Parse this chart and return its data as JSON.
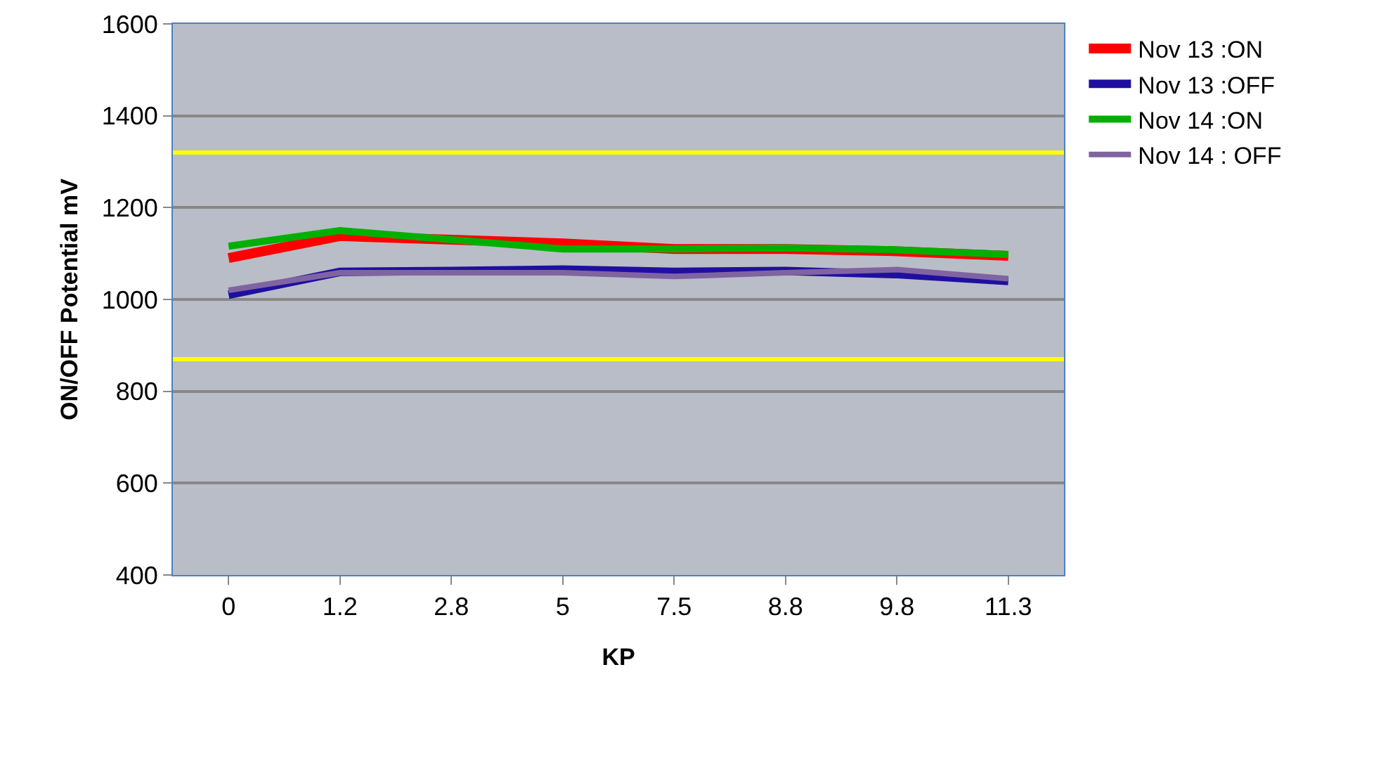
{
  "chart_data": {
    "type": "line",
    "xlabel": "KP",
    "ylabel": "ON/OFF Potential mV",
    "categories": [
      "0",
      "1.2",
      "2.8",
      "5",
      "7.5",
      "8.8",
      "9.8",
      "11.3"
    ],
    "series": [
      {
        "name": "Nov 13 :ON",
        "color": "#ff0000",
        "values": [
          1090,
          1138,
          1130,
          1122,
          1110,
          1110,
          1105,
          1095
        ]
      },
      {
        "name": "Nov 13 :OFF",
        "color": "#1f0fa0",
        "values": [
          1010,
          1060,
          1062,
          1065,
          1060,
          1062,
          1055,
          1040
        ]
      },
      {
        "name": "Nov 14 :ON",
        "color": "#00b000",
        "values": [
          1116,
          1150,
          1130,
          1110,
          1110,
          1112,
          1108,
          1098
        ]
      },
      {
        "name": "Nov 14 : OFF",
        "color": "#8064a2",
        "values": [
          1020,
          1058,
          1058,
          1058,
          1050,
          1058,
          1065,
          1045
        ]
      }
    ],
    "ref_lines": [
      {
        "axis": "y",
        "value": 1320,
        "color": "#ffff00"
      },
      {
        "axis": "y",
        "value": 870,
        "color": "#ffff00"
      }
    ],
    "ylim": [
      400,
      1600
    ],
    "yticks": [
      400,
      600,
      800,
      1000,
      1200,
      1400,
      1600
    ],
    "grid": "y",
    "legend": "right",
    "marker": "none",
    "line_style": "solid"
  }
}
